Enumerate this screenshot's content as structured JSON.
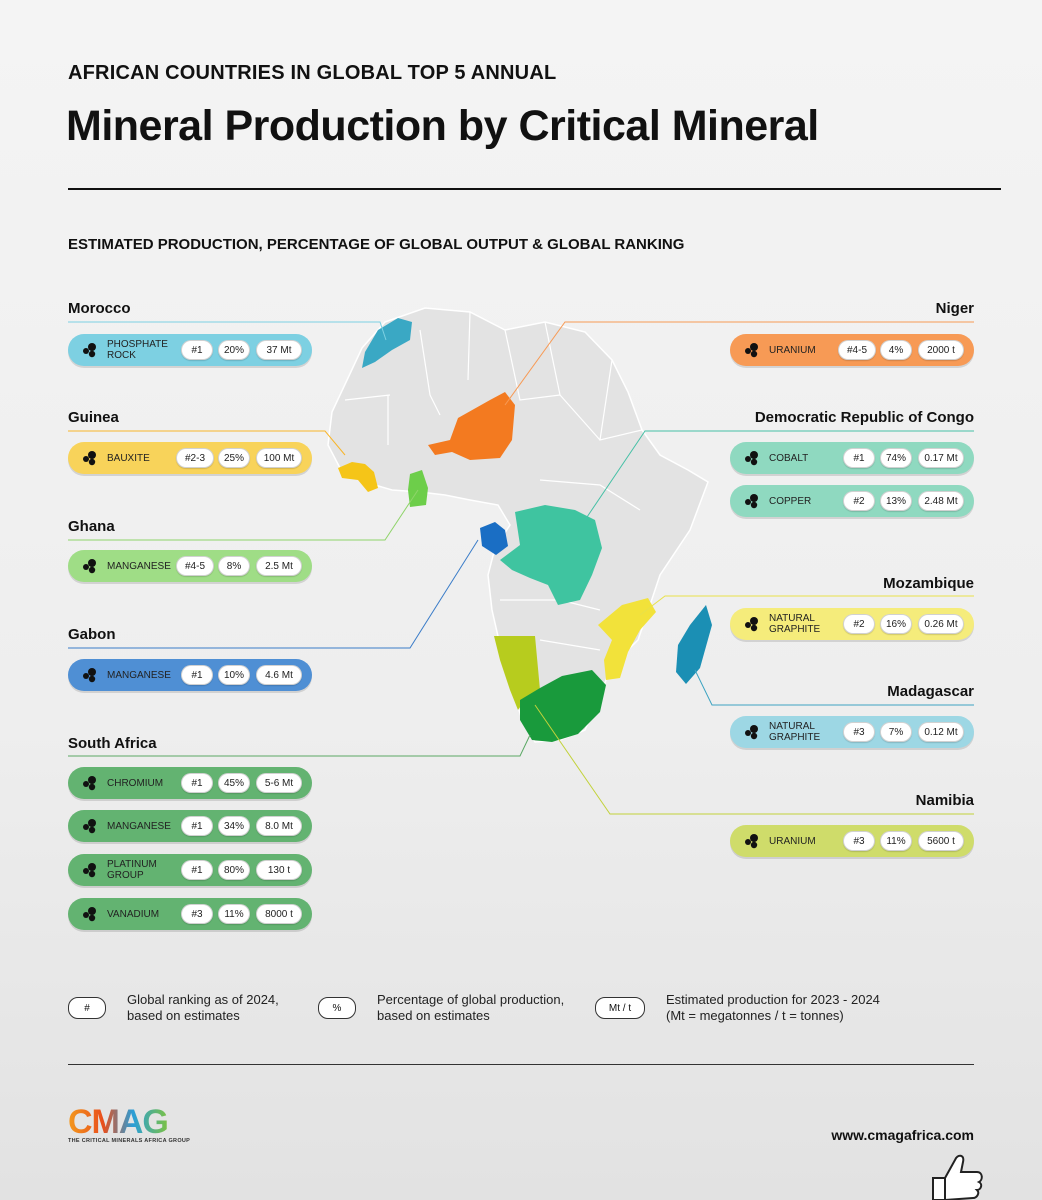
{
  "kicker": "AFRICAN COUNTRIES IN GLOBAL TOP 5 ANNUAL",
  "title": "Mineral Production by Critical Mineral",
  "subtitle": "ESTIMATED PRODUCTION, PERCENTAGE OF GLOBAL OUTPUT & GLOBAL RANKING",
  "colors": {
    "morocco": "#7dd0e2",
    "guinea": "#f8d35a",
    "ghana": "#9fdd86",
    "gabon": "#4f8fd4",
    "south_africa": "#63b371",
    "niger": "#f79a55",
    "drc": "#8fd9c0",
    "mozambique": "#f5ec7b",
    "madagascar": "#9dd7e4",
    "namibia": "#cfdc6a"
  },
  "left": [
    {
      "country": "Morocco",
      "items": [
        {
          "mineral": [
            "PHOSPHATE",
            "ROCK"
          ],
          "rank": "#1",
          "pct": "20%",
          "prod": "37 Mt"
        }
      ]
    },
    {
      "country": "Guinea",
      "items": [
        {
          "mineral": [
            "BAUXITE"
          ],
          "rank": "#2-3",
          "pct": "25%",
          "prod": "100 Mt"
        }
      ]
    },
    {
      "country": "Ghana",
      "items": [
        {
          "mineral": [
            "MANGANESE"
          ],
          "rank": "#4-5",
          "pct": "8%",
          "prod": "2.5 Mt"
        }
      ]
    },
    {
      "country": "Gabon",
      "items": [
        {
          "mineral": [
            "MANGANESE"
          ],
          "rank": "#1",
          "pct": "10%",
          "prod": "4.6 Mt"
        }
      ]
    },
    {
      "country": "South Africa",
      "items": [
        {
          "mineral": [
            "CHROMIUM"
          ],
          "rank": "#1",
          "pct": "45%",
          "prod": "5-6 Mt"
        },
        {
          "mineral": [
            "MANGANESE"
          ],
          "rank": "#1",
          "pct": "34%",
          "prod": "8.0 Mt"
        },
        {
          "mineral": [
            "PLATINUM",
            "GROUP"
          ],
          "rank": "#1",
          "pct": "80%",
          "prod": "130 t"
        },
        {
          "mineral": [
            "VANADIUM"
          ],
          "rank": "#3",
          "pct": "11%",
          "prod": "8000 t"
        }
      ]
    }
  ],
  "right": [
    {
      "country": "Niger",
      "items": [
        {
          "mineral": [
            "URANIUM"
          ],
          "rank": "#4-5",
          "pct": "4%",
          "prod": "2000 t"
        }
      ]
    },
    {
      "country": "Democratic Republic of Congo",
      "items": [
        {
          "mineral": [
            "COBALT"
          ],
          "rank": "#1",
          "pct": "74%",
          "prod": "0.17 Mt"
        },
        {
          "mineral": [
            "COPPER"
          ],
          "rank": "#2",
          "pct": "13%",
          "prod": "2.48 Mt"
        }
      ]
    },
    {
      "country": "Mozambique",
      "items": [
        {
          "mineral": [
            "NATURAL",
            "GRAPHITE"
          ],
          "rank": "#2",
          "pct": "16%",
          "prod": "0.26 Mt"
        }
      ]
    },
    {
      "country": "Madagascar",
      "items": [
        {
          "mineral": [
            "NATURAL",
            "GRAPHITE"
          ],
          "rank": "#3",
          "pct": "7%",
          "prod": "0.12 Mt"
        }
      ]
    },
    {
      "country": "Namibia",
      "items": [
        {
          "mineral": [
            "URANIUM"
          ],
          "rank": "#3",
          "pct": "11%",
          "prod": "5600 t"
        }
      ]
    }
  ],
  "legend": [
    {
      "chip": "#",
      "text": [
        "Global ranking as of 2024,",
        "based on estimates"
      ]
    },
    {
      "chip": "%",
      "text": [
        "Percentage of global production,",
        "based on estimates"
      ]
    },
    {
      "chip": "Mt / t",
      "text": [
        "Estimated production for 2023 - 2024",
        "(Mt = megatonnes / t = tonnes)"
      ]
    }
  ],
  "footer": {
    "logo": "CMAG",
    "logo_tagline": "THE CRITICAL MINERALS AFRICA GROUP",
    "url": "www.cmagafrica.com"
  }
}
